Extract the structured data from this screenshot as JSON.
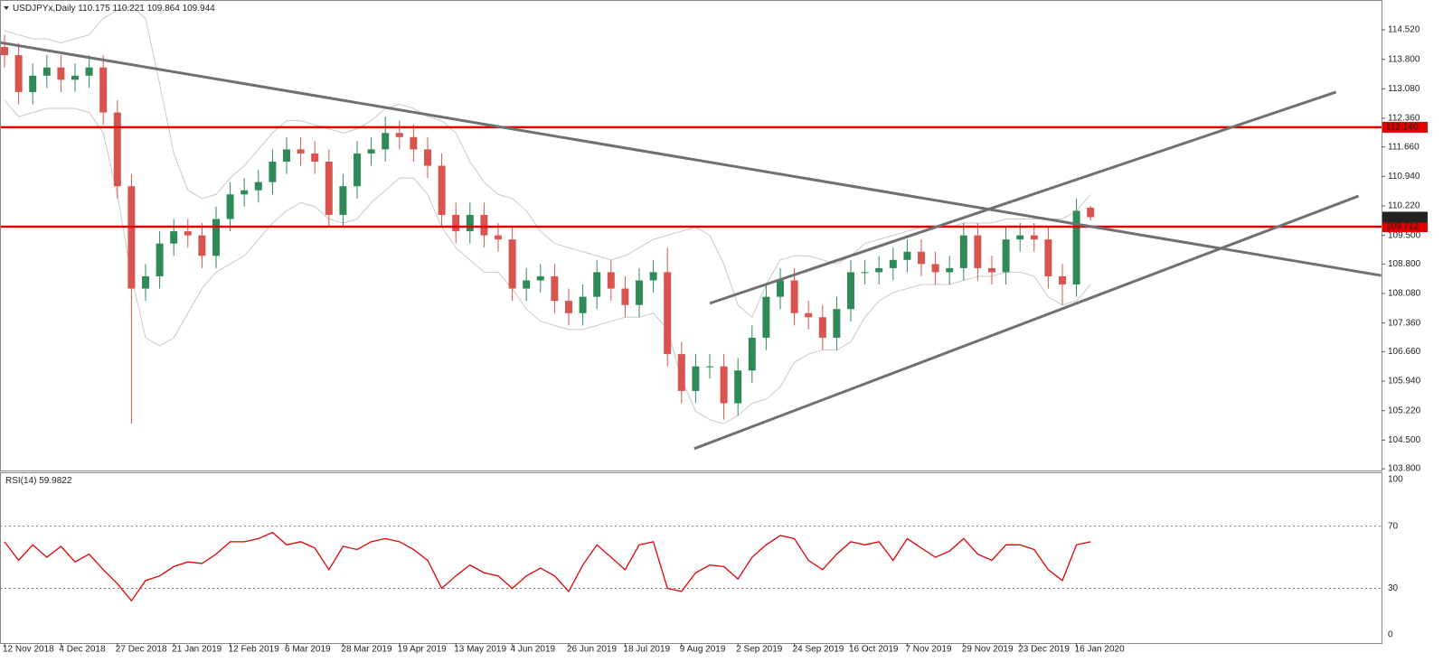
{
  "chart_data": {
    "type": "candlestick",
    "symbol": "USDJPYx,Daily",
    "ohlc": [
      110.175,
      110.221,
      109.864,
      109.944
    ],
    "categories": [
      "12 Nov 2018",
      null,
      null,
      null,
      "4 Dec 2018",
      null,
      null,
      null,
      "27 Dec 2018",
      null,
      null,
      null,
      "21 Jan 2019",
      null,
      null,
      null,
      "12 Feb 2019",
      null,
      null,
      null,
      "6 Mar 2019",
      null,
      null,
      null,
      "28 Mar 2019",
      null,
      null,
      null,
      "19 Apr 2019",
      null,
      null,
      null,
      "13 May 2019",
      null,
      null,
      null,
      "4 Jun 2019",
      null,
      null,
      null,
      "26 Jun 2019",
      null,
      null,
      null,
      "18 Jul 2019",
      null,
      null,
      null,
      "9 Aug 2019",
      null,
      null,
      null,
      "2 Sep 2019",
      null,
      null,
      null,
      "24 Sep 2019",
      null,
      null,
      null,
      "16 Oct 2019",
      null,
      null,
      null,
      "7 Nov 2019",
      null,
      null,
      null,
      "29 Nov 2019",
      null,
      null,
      null,
      "23 Dec 2019",
      null,
      null,
      null,
      "16 Jan 2020",
      null
    ],
    "open": [
      114.1,
      113.9,
      113.0,
      113.4,
      113.6,
      113.3,
      113.4,
      113.6,
      112.5,
      110.7,
      108.2,
      108.5,
      109.3,
      109.6,
      109.5,
      109.0,
      109.9,
      110.5,
      110.6,
      110.8,
      111.3,
      111.6,
      111.5,
      111.3,
      110.0,
      110.7,
      111.5,
      111.6,
      112.0,
      111.9,
      111.6,
      111.2,
      110.0,
      109.6,
      110.0,
      109.5,
      109.4,
      108.2,
      108.4,
      108.5,
      107.9,
      107.6,
      108.0,
      108.6,
      108.2,
      107.8,
      108.4,
      108.6,
      106.6,
      105.7,
      106.3,
      106.3,
      105.4,
      106.2,
      107.0,
      108.0,
      108.4,
      107.6,
      107.5,
      107.0,
      107.7,
      108.6,
      108.6,
      108.7,
      108.9,
      109.1,
      108.8,
      108.6,
      108.7,
      109.5,
      108.7,
      108.6,
      109.4,
      109.5,
      109.4,
      108.5,
      108.3,
      110.175
    ],
    "high": [
      114.4,
      114.2,
      113.7,
      113.9,
      113.9,
      113.7,
      113.9,
      113.9,
      112.8,
      111.0,
      108.8,
      109.6,
      109.9,
      109.9,
      109.8,
      110.2,
      110.8,
      110.9,
      111.1,
      111.6,
      111.9,
      111.9,
      111.8,
      111.6,
      111.0,
      111.8,
      111.9,
      112.4,
      112.3,
      112.2,
      111.9,
      111.5,
      110.3,
      110.3,
      110.3,
      109.8,
      109.7,
      108.7,
      108.8,
      108.8,
      108.2,
      108.3,
      108.9,
      108.9,
      108.5,
      108.7,
      108.9,
      109.2,
      106.9,
      106.6,
      106.6,
      106.6,
      106.5,
      107.3,
      108.3,
      108.7,
      108.7,
      107.9,
      107.8,
      108.0,
      108.9,
      108.9,
      109.0,
      109.2,
      109.4,
      109.4,
      109.1,
      109.0,
      109.8,
      109.8,
      109.0,
      109.7,
      109.8,
      109.8,
      109.7,
      108.8,
      110.4,
      110.221
    ],
    "low": [
      113.6,
      112.7,
      112.7,
      113.1,
      113.0,
      113.0,
      113.1,
      112.2,
      110.4,
      104.9,
      107.9,
      108.2,
      109.0,
      109.2,
      108.7,
      108.7,
      109.6,
      110.2,
      110.3,
      110.5,
      111.0,
      111.2,
      111.0,
      109.7,
      109.7,
      110.4,
      111.2,
      111.3,
      111.6,
      111.3,
      110.9,
      109.7,
      109.3,
      109.3,
      109.2,
      109.1,
      107.9,
      107.9,
      108.1,
      107.6,
      107.3,
      107.3,
      107.7,
      107.9,
      107.5,
      107.5,
      108.1,
      106.3,
      105.4,
      105.4,
      106.0,
      105.0,
      105.1,
      105.9,
      106.7,
      107.7,
      107.3,
      107.2,
      106.7,
      106.7,
      107.4,
      108.3,
      108.3,
      108.4,
      108.6,
      108.5,
      108.3,
      108.3,
      108.4,
      108.4,
      108.3,
      108.3,
      109.1,
      109.1,
      108.2,
      107.8,
      108.0,
      109.864
    ],
    "close": [
      113.9,
      113.0,
      113.4,
      113.6,
      113.3,
      113.4,
      113.6,
      112.5,
      110.7,
      108.2,
      108.5,
      109.3,
      109.6,
      109.5,
      109.0,
      109.9,
      110.5,
      110.6,
      110.8,
      111.3,
      111.6,
      111.5,
      111.3,
      110.0,
      110.7,
      111.5,
      111.6,
      112.0,
      111.9,
      111.6,
      111.2,
      110.0,
      109.6,
      110.0,
      109.5,
      109.4,
      108.2,
      108.4,
      108.5,
      107.9,
      107.6,
      108.0,
      108.6,
      108.2,
      107.8,
      108.4,
      108.6,
      106.6,
      105.7,
      106.3,
      106.3,
      105.4,
      106.2,
      107.0,
      108.0,
      108.4,
      107.6,
      107.5,
      107.0,
      107.7,
      108.6,
      108.6,
      108.7,
      108.9,
      109.1,
      108.8,
      108.6,
      108.7,
      109.5,
      108.7,
      108.6,
      109.4,
      109.5,
      109.4,
      108.5,
      108.3,
      110.1,
      109.944
    ],
    "bull_color": "#2e8b57",
    "bear_color": "#d9534f",
    "bands": {
      "color": "#c8c8c8",
      "upper": [
        114.5,
        114.4,
        114.3,
        114.3,
        114.2,
        114.3,
        114.4,
        114.8,
        115.0,
        115.1,
        114.8,
        113.2,
        111.5,
        110.6,
        110.4,
        110.5,
        110.9,
        111.2,
        111.6,
        112.0,
        112.3,
        112.3,
        112.2,
        112.1,
        112.0,
        112.1,
        112.3,
        112.6,
        112.7,
        112.6,
        112.4,
        112.3,
        112.0,
        111.3,
        110.8,
        110.5,
        110.4,
        110.1,
        109.6,
        109.3,
        109.2,
        109.1,
        109.0,
        108.9,
        109.0,
        109.2,
        109.4,
        109.5,
        109.6,
        109.7,
        109.5,
        108.8,
        107.8,
        107.5,
        108.3,
        108.9,
        109.0,
        109.0,
        108.9,
        108.8,
        109.0,
        109.3,
        109.4,
        109.5,
        109.6,
        109.7,
        109.7,
        109.7,
        109.8,
        109.8,
        109.8,
        109.9,
        109.9,
        109.9,
        109.9,
        109.9,
        110.1,
        110.5
      ],
      "lower": [
        112.8,
        112.4,
        112.5,
        112.6,
        112.6,
        112.6,
        112.5,
        112.0,
        110.5,
        108.5,
        107.0,
        106.8,
        107.0,
        107.6,
        108.2,
        108.6,
        108.8,
        109.0,
        109.4,
        109.8,
        110.1,
        110.3,
        110.2,
        109.9,
        109.8,
        109.9,
        110.3,
        110.6,
        110.9,
        110.9,
        110.5,
        109.7,
        109.2,
        108.9,
        108.6,
        108.6,
        108.2,
        107.7,
        107.4,
        107.3,
        107.2,
        107.2,
        107.3,
        107.4,
        107.5,
        107.5,
        107.6,
        107.2,
        106.0,
        105.2,
        105.0,
        104.9,
        105.1,
        105.4,
        105.5,
        105.8,
        106.4,
        106.6,
        106.7,
        106.7,
        106.9,
        107.5,
        107.9,
        108.1,
        108.2,
        108.3,
        108.3,
        108.3,
        108.4,
        108.5,
        108.5,
        108.6,
        108.6,
        108.5,
        108.0,
        107.8,
        107.9,
        108.3
      ]
    },
    "ylim": [
      103.757,
      115.248
    ],
    "yticks": [
      {
        "value": 114.52,
        "label": "114.520"
      },
      {
        "value": 113.8,
        "label": "113.800"
      },
      {
        "value": 113.08,
        "label": "113.080"
      },
      {
        "value": 112.36,
        "label": "112.360"
      },
      {
        "value": 111.66,
        "label": "111.660"
      },
      {
        "value": 110.94,
        "label": "110.940"
      },
      {
        "value": 110.22,
        "label": "110.220"
      },
      {
        "value": 109.5,
        "label": "109.500"
      },
      {
        "value": 108.8,
        "label": "108.800"
      },
      {
        "value": 108.08,
        "label": "108.080"
      },
      {
        "value": 107.36,
        "label": "107.360"
      },
      {
        "value": 106.66,
        "label": "106.660"
      },
      {
        "value": 105.94,
        "label": "105.940"
      },
      {
        "value": 105.22,
        "label": "105.220"
      },
      {
        "value": 104.5,
        "label": "104.500"
      },
      {
        "value": 103.8,
        "label": "103.800"
      }
    ],
    "levels": [
      {
        "value": 112.14,
        "label": "112.140",
        "color": "#e00000"
      },
      {
        "value": 109.712,
        "label": "109.712",
        "color": "#e00000"
      }
    ],
    "trendlines": [
      {
        "x": [
          -0.32,
          97.6
        ],
        "y": [
          114.21,
          108.52
        ],
        "color": "#707070"
      },
      {
        "x": [
          50.0,
          94.4
        ],
        "y": [
          107.84,
          113.0
        ],
        "color": "#707070"
      },
      {
        "x": [
          48.9,
          96.0
        ],
        "y": [
          104.29,
          110.46
        ],
        "color": "#707070"
      }
    ],
    "rsi": {
      "label": "RSI(14)",
      "last": 59.9822,
      "color": "#e00000",
      "ylim": [
        -5.2,
        104.1
      ],
      "yticks": [
        100,
        70,
        30,
        0
      ],
      "values": [
        60,
        48,
        58,
        50,
        57,
        47,
        52,
        42,
        33,
        22,
        35,
        38,
        44,
        47,
        46,
        52,
        60,
        60,
        62,
        66,
        58,
        60,
        56,
        42,
        57,
        55,
        60,
        62,
        60,
        55,
        48,
        30,
        38,
        45,
        40,
        38,
        30,
        38,
        43,
        38,
        28,
        45,
        58,
        50,
        42,
        58,
        60,
        30,
        28,
        40,
        45,
        44,
        36,
        50,
        58,
        64,
        62,
        48,
        42,
        52,
        60,
        58,
        60,
        48,
        62,
        56,
        50,
        54,
        62,
        52,
        48,
        58,
        58,
        55,
        42,
        35,
        58,
        59.9822
      ]
    }
  }
}
